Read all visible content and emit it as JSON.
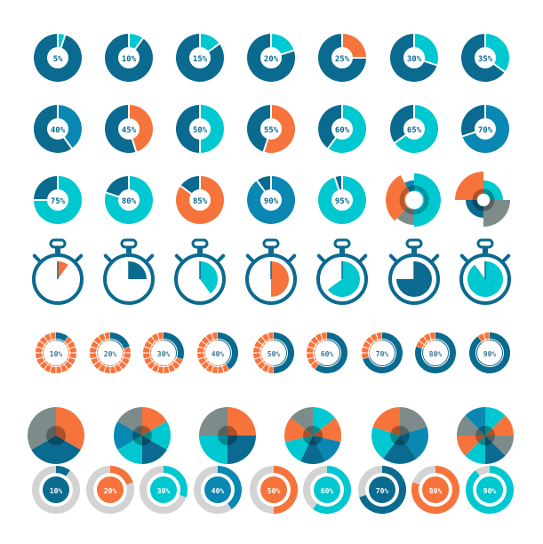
{
  "colors": {
    "dark": "#0b6a8f",
    "cyan": "#00c8d0",
    "orange": "#f6743c",
    "blue": "#0a87b2",
    "gray": "#7d8b8a",
    "light": "#d3d3d3",
    "white": "#ffffff"
  },
  "donuts": [
    {
      "pct": 5,
      "label": "5%",
      "color": "cyan"
    },
    {
      "pct": 10,
      "label": "10%",
      "color": "cyan"
    },
    {
      "pct": 15,
      "label": "15%",
      "color": "cyan"
    },
    {
      "pct": 20,
      "label": "20%",
      "color": "cyan"
    },
    {
      "pct": 25,
      "label": "25%",
      "color": "orange"
    },
    {
      "pct": 30,
      "label": "30%",
      "color": "cyan"
    },
    {
      "pct": 35,
      "label": "35%",
      "color": "cyan"
    },
    {
      "pct": 40,
      "label": "40%",
      "color": "blue"
    },
    {
      "pct": 45,
      "label": "45%",
      "color": "orange"
    },
    {
      "pct": 50,
      "label": "50%",
      "color": "cyan"
    },
    {
      "pct": 55,
      "label": "55%",
      "color": "orange"
    },
    {
      "pct": 60,
      "label": "60%",
      "color": "cyan"
    },
    {
      "pct": 65,
      "label": "65%",
      "color": "cyan"
    },
    {
      "pct": 70,
      "label": "70%",
      "color": "blue"
    },
    {
      "pct": 75,
      "label": "75%",
      "color": "cyan"
    },
    {
      "pct": 80,
      "label": "80%",
      "color": "cyan"
    },
    {
      "pct": 85,
      "label": "85%",
      "color": "orange"
    },
    {
      "pct": 90,
      "label": "90%",
      "color": "blue"
    },
    {
      "pct": 95,
      "label": "95%",
      "color": "cyan"
    }
  ],
  "stopwatches": [
    {
      "pct": 10,
      "color": "orange"
    },
    {
      "pct": 25,
      "color": "dark"
    },
    {
      "pct": 40,
      "color": "cyan"
    },
    {
      "pct": 50,
      "color": "orange"
    },
    {
      "pct": 65,
      "color": "cyan"
    },
    {
      "pct": 75,
      "color": "dark"
    },
    {
      "pct": 90,
      "color": "cyan"
    }
  ],
  "segmented": [
    {
      "pct": 10,
      "label": "10%"
    },
    {
      "pct": 20,
      "label": "20%"
    },
    {
      "pct": 30,
      "label": "30%"
    },
    {
      "pct": 40,
      "label": "40%"
    },
    {
      "pct": 50,
      "label": "50%"
    },
    {
      "pct": 60,
      "label": "60%"
    },
    {
      "pct": 70,
      "label": "70%"
    },
    {
      "pct": 80,
      "label": "80%"
    },
    {
      "pct": 90,
      "label": "90%"
    }
  ],
  "pies": [
    [
      "orange",
      "dark",
      "gray"
    ],
    [
      "orange",
      "cyan",
      "dark",
      "cyan",
      "blue",
      "gray"
    ],
    [
      "orange",
      "dark",
      "cyan",
      "gray"
    ],
    [
      "cyan",
      "orange",
      "blue",
      "dark",
      "cyan",
      "orange",
      "gray"
    ],
    [
      "gray",
      "blue",
      "dark",
      "cyan",
      "orange"
    ],
    [
      "cyan",
      "orange",
      "gray",
      "dark",
      "cyan",
      "orange",
      "gray",
      "blue"
    ]
  ],
  "rings": [
    {
      "pct": 10,
      "label": "10%",
      "color": "dark"
    },
    {
      "pct": 20,
      "label": "20%",
      "color": "orange"
    },
    {
      "pct": 30,
      "label": "30%",
      "color": "cyan"
    },
    {
      "pct": 40,
      "label": "40%",
      "color": "blue"
    },
    {
      "pct": 50,
      "label": "50%",
      "color": "orange"
    },
    {
      "pct": 60,
      "label": "60%",
      "color": "cyan"
    },
    {
      "pct": 70,
      "label": "70%",
      "color": "dark"
    },
    {
      "pct": 80,
      "label": "80%",
      "color": "orange"
    },
    {
      "pct": 90,
      "label": "90%",
      "color": "cyan"
    }
  ]
}
